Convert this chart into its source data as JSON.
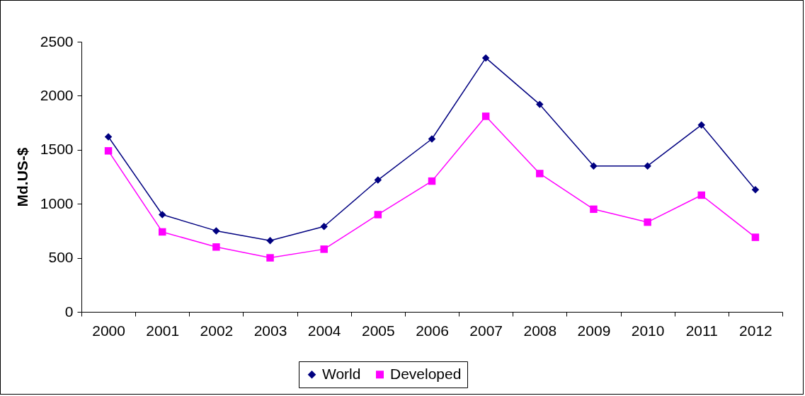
{
  "chart_data": {
    "type": "line",
    "ylabel": "Md.US-$",
    "categories": [
      "2000",
      "2001",
      "2002",
      "2003",
      "2004",
      "2005",
      "2006",
      "2007",
      "2008",
      "2009",
      "2010",
      "2011",
      "2012"
    ],
    "series": [
      {
        "name": "World",
        "color": "#000080",
        "marker": "diamond",
        "values": [
          1620,
          900,
          750,
          660,
          790,
          1220,
          1600,
          2350,
          1920,
          1350,
          1350,
          1730,
          1130
        ]
      },
      {
        "name": "Developed",
        "color": "#ff00ff",
        "marker": "square",
        "values": [
          1490,
          740,
          600,
          500,
          580,
          900,
          1210,
          1810,
          1280,
          950,
          830,
          1080,
          690
        ]
      }
    ],
    "ylim": [
      0,
      2500
    ],
    "yticks": [
      0,
      500,
      1000,
      1500,
      2000,
      2500
    ],
    "grid": false,
    "legend": "bottom"
  }
}
